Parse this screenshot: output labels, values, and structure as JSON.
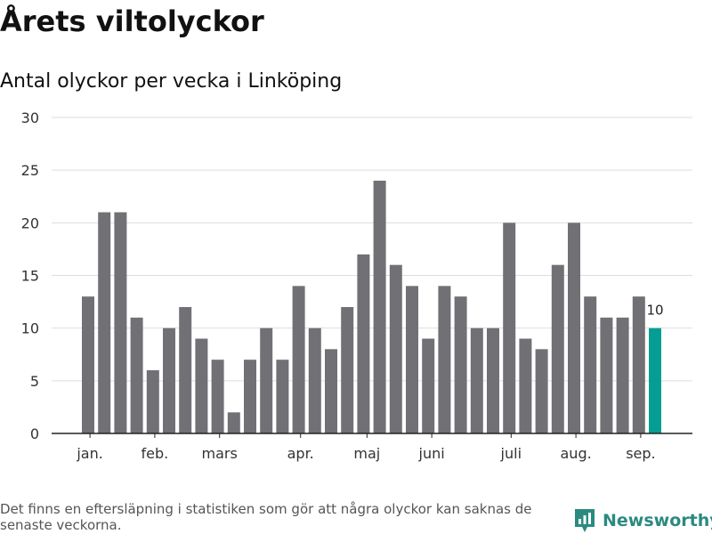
{
  "title": "Årets viltolyckor",
  "subtitle": "Antal olyckor per vecka i Linköping",
  "footnote": "Det finns en eftersläpning i statistiken som gör att några olyckor kan saknas de senaste veckorna.",
  "brand": {
    "name": "Newsworthy",
    "icon": "newsworthy-logo-icon",
    "color": "#2b8a80"
  },
  "colors": {
    "bar": "#717075",
    "highlight": "#069e94",
    "grid": "#dddddd",
    "axis": "#222222"
  },
  "chart_data": {
    "type": "bar",
    "values": [
      13,
      21,
      21,
      11,
      6,
      10,
      12,
      9,
      7,
      2,
      7,
      10,
      7,
      14,
      10,
      8,
      12,
      17,
      24,
      16,
      14,
      9,
      14,
      13,
      10,
      10,
      20,
      9,
      8,
      16,
      20,
      13,
      11,
      11,
      13,
      10
    ],
    "highlight_index": 35,
    "highlight_label": "10",
    "month_labels": [
      {
        "label": "jan.",
        "at_bar": 0.5
      },
      {
        "label": "feb.",
        "at_bar": 4.5
      },
      {
        "label": "mars",
        "at_bar": 8.5
      },
      {
        "label": "apr.",
        "at_bar": 13.5
      },
      {
        "label": "maj",
        "at_bar": 17.6
      },
      {
        "label": "juni",
        "at_bar": 21.6
      },
      {
        "label": "juli",
        "at_bar": 26.5
      },
      {
        "label": "aug.",
        "at_bar": 30.5
      },
      {
        "label": "sep.",
        "at_bar": 34.5
      }
    ],
    "yticks": [
      0,
      5,
      10,
      15,
      20,
      25,
      30
    ],
    "ylim": [
      0,
      30
    ],
    "grid": true,
    "legend": "none"
  }
}
